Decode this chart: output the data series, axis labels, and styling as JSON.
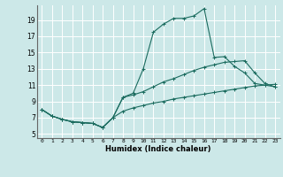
{
  "title": "",
  "xlabel": "Humidex (Indice chaleur)",
  "background_color": "#cce8e8",
  "grid_color": "#ffffff",
  "line_color": "#1a6b5e",
  "xlim": [
    -0.5,
    23.5
  ],
  "ylim": [
    4.5,
    20.8
  ],
  "xticks": [
    0,
    1,
    2,
    3,
    4,
    5,
    6,
    7,
    8,
    9,
    10,
    11,
    12,
    13,
    14,
    15,
    16,
    17,
    18,
    19,
    20,
    21,
    22,
    23
  ],
  "yticks": [
    5,
    7,
    9,
    11,
    13,
    15,
    17,
    19
  ],
  "line1_x": [
    0,
    1,
    2,
    3,
    4,
    5,
    6,
    7,
    8,
    9,
    10,
    11,
    12,
    13,
    14,
    15,
    16,
    17,
    18,
    19,
    20,
    21,
    22,
    23
  ],
  "line1_y": [
    8.0,
    7.2,
    6.8,
    6.5,
    6.4,
    6.3,
    5.8,
    7.0,
    9.5,
    10.0,
    13.0,
    17.5,
    18.5,
    19.2,
    19.2,
    19.5,
    20.4,
    14.4,
    14.5,
    13.3,
    12.5,
    11.2,
    11.0,
    10.8
  ],
  "line2_x": [
    0,
    1,
    2,
    3,
    4,
    5,
    6,
    7,
    8,
    9,
    10,
    11,
    12,
    13,
    14,
    15,
    16,
    17,
    18,
    19,
    20,
    21,
    22,
    23
  ],
  "line2_y": [
    8.0,
    7.2,
    6.8,
    6.5,
    6.4,
    6.3,
    5.8,
    7.0,
    9.5,
    9.8,
    10.2,
    10.8,
    11.4,
    11.8,
    12.3,
    12.8,
    13.2,
    13.5,
    13.8,
    13.9,
    14.0,
    12.5,
    11.2,
    10.8
  ],
  "line3_x": [
    0,
    1,
    2,
    3,
    4,
    5,
    6,
    7,
    8,
    9,
    10,
    11,
    12,
    13,
    14,
    15,
    16,
    17,
    18,
    19,
    20,
    21,
    22,
    23
  ],
  "line3_y": [
    8.0,
    7.2,
    6.8,
    6.5,
    6.4,
    6.3,
    5.8,
    7.0,
    7.8,
    8.2,
    8.5,
    8.8,
    9.0,
    9.3,
    9.5,
    9.7,
    9.9,
    10.1,
    10.3,
    10.5,
    10.7,
    10.9,
    11.0,
    11.1
  ]
}
